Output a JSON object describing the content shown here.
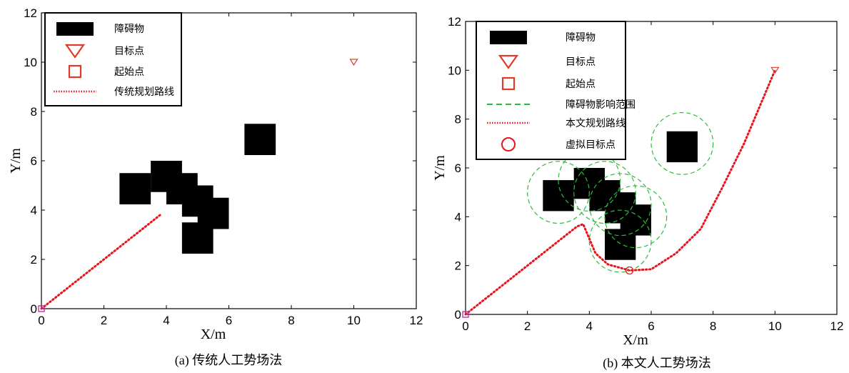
{
  "chart_data": [
    {
      "type": "scatter",
      "caption": "(a) 传统人工势场法",
      "xlabel": "X/m",
      "ylabel": "Y/m",
      "xlim": [
        0,
        12
      ],
      "ylim": [
        0,
        12
      ],
      "xticks": [
        0,
        2,
        4,
        6,
        8,
        10,
        12
      ],
      "yticks": [
        0,
        2,
        4,
        6,
        8,
        10,
        12
      ],
      "legend_position": "top-left",
      "legend": [
        {
          "key": "obstacle",
          "label": "障碍物"
        },
        {
          "key": "goal",
          "label": "目标点"
        },
        {
          "key": "start",
          "label": "起始点"
        },
        {
          "key": "path",
          "label": "传统规划路线"
        }
      ],
      "obstacles": [
        [
          3,
          5
        ],
        [
          4,
          5.5
        ],
        [
          4.5,
          5
        ],
        [
          5,
          4.5
        ],
        [
          5.5,
          4
        ],
        [
          5,
          3
        ],
        [
          7,
          7
        ]
      ],
      "obstacle_size": 1,
      "goal": [
        10,
        10
      ],
      "start": [
        0,
        0
      ],
      "path": [
        [
          0,
          0
        ],
        [
          3.8,
          3.8
        ]
      ],
      "colors": {
        "path": "#e8141c",
        "goal": "#e03a2a",
        "start": "#c020b0",
        "obstacle": "#000000"
      }
    },
    {
      "type": "scatter",
      "caption": "(b) 本文人工势场法",
      "xlabel": "X/m",
      "ylabel": "Y/m",
      "xlim": [
        0,
        12
      ],
      "ylim": [
        0,
        12
      ],
      "xticks": [
        0,
        2,
        4,
        6,
        8,
        10,
        12
      ],
      "yticks": [
        0,
        2,
        4,
        6,
        8,
        10,
        12
      ],
      "legend_position": "top-left",
      "legend": [
        {
          "key": "obstacle",
          "label": "障碍物"
        },
        {
          "key": "goal",
          "label": "目标点"
        },
        {
          "key": "start",
          "label": "起始点"
        },
        {
          "key": "influence",
          "label": "障碍物影响范围"
        },
        {
          "key": "path",
          "label": "本文规划路线"
        },
        {
          "key": "virtual",
          "label": "虚拟目标点"
        }
      ],
      "obstacles": [
        [
          3,
          5
        ],
        [
          4,
          5.5
        ],
        [
          4.5,
          5
        ],
        [
          5,
          4.5
        ],
        [
          5.5,
          4
        ],
        [
          5,
          3
        ],
        [
          7,
          7
        ]
      ],
      "obstacle_size": 1,
      "influence_radius": 1,
      "goal": [
        10,
        10
      ],
      "start": [
        0,
        0
      ],
      "virtual_goal": [
        5.3,
        1.8
      ],
      "path": [
        [
          0,
          0
        ],
        [
          3.6,
          3.6
        ],
        [
          3.8,
          3.7
        ],
        [
          4.2,
          2.5
        ],
        [
          4.6,
          2.05
        ],
        [
          5.3,
          1.8
        ],
        [
          6,
          1.85
        ],
        [
          6.8,
          2.5
        ],
        [
          7.6,
          3.5
        ],
        [
          8.3,
          5.2
        ],
        [
          9,
          7
        ],
        [
          9.5,
          8.5
        ],
        [
          10,
          10
        ]
      ],
      "colors": {
        "path": "#e8141c",
        "goal": "#e03a2a",
        "start": "#c020b0",
        "obstacle": "#000000",
        "influence": "#2dbb3a",
        "virtual": "#e8141c"
      }
    }
  ]
}
